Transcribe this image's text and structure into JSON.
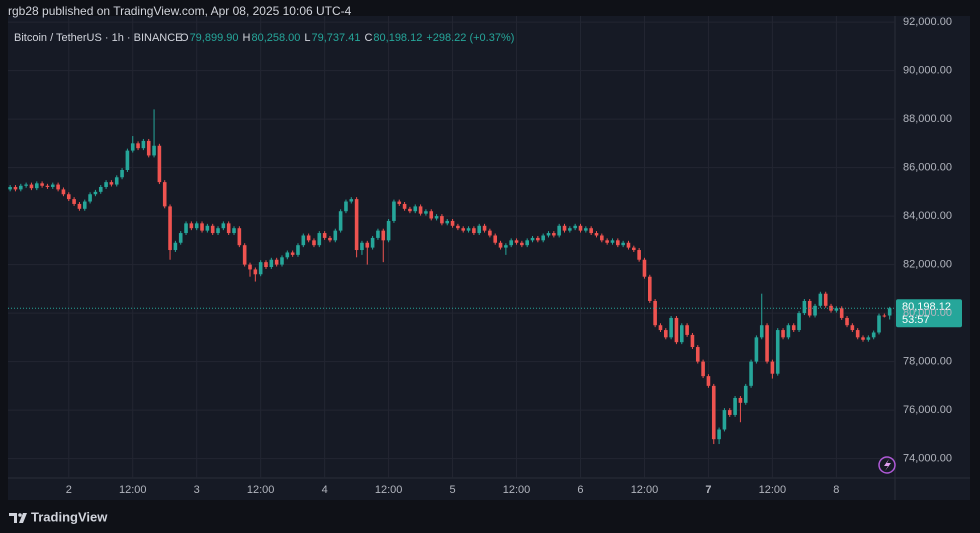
{
  "header": {
    "text": "rgb28 published on TradingView.com, Apr 08, 2025 10:06 UTC-4"
  },
  "footer": {
    "brand": "TradingView"
  },
  "chart_data": {
    "type": "candlestick",
    "symbol": "Bitcoin / TetherUS · 1h · BINANCE",
    "legend": [
      {
        "key": "O",
        "value": "79,899.90"
      },
      {
        "key": "H",
        "value": "80,258.00"
      },
      {
        "key": "L",
        "value": "79,737.41"
      },
      {
        "key": "C",
        "value": "80,198.12"
      }
    ],
    "change": "+298.22 (+0.37%)",
    "last_price_label": "80,198.12",
    "countdown": "53:57",
    "up_color": "#26a69a",
    "down_color": "#ef5350",
    "grid": true,
    "xlim": [
      -0.4,
      166
    ],
    "ylim": [
      73200,
      92250
    ],
    "yticks": [
      {
        "value": 74000,
        "label": "74,000.00"
      },
      {
        "value": 76000,
        "label": "76,000.00"
      },
      {
        "value": 78000,
        "label": "78,000.00"
      },
      {
        "value": 80000,
        "label": "80,000.00"
      },
      {
        "value": 82000,
        "label": "82,000.00"
      },
      {
        "value": 84000,
        "label": "84,000.00"
      },
      {
        "value": 86000,
        "label": "86,000.00"
      },
      {
        "value": 88000,
        "label": "88,000.00"
      },
      {
        "value": 90000,
        "label": "90,000.00"
      },
      {
        "value": 92000,
        "label": "92,000.00"
      }
    ],
    "xticks": [
      {
        "value": 11,
        "label": "2"
      },
      {
        "value": 23,
        "label": "12:00"
      },
      {
        "value": 35,
        "label": "3"
      },
      {
        "value": 47,
        "label": "12:00"
      },
      {
        "value": 59,
        "label": "4"
      },
      {
        "value": 71,
        "label": "12:00"
      },
      {
        "value": 83,
        "label": "5"
      },
      {
        "value": 95,
        "label": "12:00"
      },
      {
        "value": 107,
        "label": "6"
      },
      {
        "value": 119,
        "label": "12:00"
      },
      {
        "value": 131,
        "label": "7"
      },
      {
        "value": 143,
        "label": "12:00"
      },
      {
        "value": 155,
        "label": "8"
      }
    ],
    "ohlc": [
      [
        85100,
        85280,
        85020,
        85200
      ],
      [
        85200,
        85280,
        85020,
        85100
      ],
      [
        85100,
        85330,
        85020,
        85250
      ],
      [
        85250,
        85380,
        85170,
        85300
      ],
      [
        85300,
        85380,
        85070,
        85150
      ],
      [
        85150,
        85430,
        85070,
        85350
      ],
      [
        85350,
        85430,
        85170,
        85250
      ],
      [
        85250,
        85330,
        85120,
        85200
      ],
      [
        85200,
        85380,
        85120,
        85300
      ],
      [
        85300,
        85380,
        85020,
        85100
      ],
      [
        85100,
        85180,
        84820,
        84900
      ],
      [
        84900,
        84980,
        84620,
        84700
      ],
      [
        84700,
        84780,
        84420,
        84500
      ],
      [
        84500,
        84580,
        84220,
        84300
      ],
      [
        84300,
        84680,
        84220,
        84600
      ],
      [
        84600,
        84980,
        84520,
        84900
      ],
      [
        84900,
        85080,
        84820,
        85000
      ],
      [
        85000,
        85280,
        84920,
        85200
      ],
      [
        85200,
        85480,
        85120,
        85400
      ],
      [
        85400,
        85480,
        85220,
        85300
      ],
      [
        85300,
        85680,
        85220,
        85600
      ],
      [
        85600,
        85980,
        85520,
        85900
      ],
      [
        85900,
        86780,
        85820,
        86700
      ],
      [
        86700,
        87300,
        86620,
        87000
      ],
      [
        87000,
        87080,
        86720,
        86800
      ],
      [
        86800,
        87180,
        86720,
        87100
      ],
      [
        87100,
        87180,
        86420,
        86500
      ],
      [
        86500,
        88400,
        86420,
        86900
      ],
      [
        86900,
        86980,
        85320,
        85400
      ],
      [
        85400,
        85480,
        84320,
        84400
      ],
      [
        84400,
        84480,
        82200,
        82600
      ],
      [
        82600,
        82980,
        82520,
        82900
      ],
      [
        82900,
        83380,
        82820,
        83300
      ],
      [
        83300,
        83780,
        83220,
        83700
      ],
      [
        83700,
        83780,
        83420,
        83500
      ],
      [
        83500,
        83780,
        83420,
        83700
      ],
      [
        83700,
        83780,
        83320,
        83400
      ],
      [
        83400,
        83680,
        83320,
        83600
      ],
      [
        83600,
        83680,
        83220,
        83300
      ],
      [
        83300,
        83580,
        83220,
        83500
      ],
      [
        83500,
        83780,
        83420,
        83700
      ],
      [
        83700,
        83780,
        83220,
        83300
      ],
      [
        83300,
        83580,
        83220,
        83500
      ],
      [
        83500,
        83580,
        82720,
        82800
      ],
      [
        82800,
        82880,
        81920,
        82000
      ],
      [
        82000,
        82080,
        81500,
        81800
      ],
      [
        81800,
        81880,
        81300,
        81600
      ],
      [
        81600,
        82180,
        81520,
        82100
      ],
      [
        82100,
        82180,
        81820,
        81900
      ],
      [
        81900,
        82280,
        81820,
        82200
      ],
      [
        82200,
        82280,
        81920,
        82000
      ],
      [
        82000,
        82380,
        81920,
        82300
      ],
      [
        82300,
        82580,
        82220,
        82500
      ],
      [
        82500,
        82580,
        82320,
        82400
      ],
      [
        82400,
        82880,
        82320,
        82800
      ],
      [
        82800,
        83280,
        82720,
        83200
      ],
      [
        83200,
        83280,
        82920,
        83000
      ],
      [
        83000,
        83080,
        82720,
        82800
      ],
      [
        82800,
        83380,
        82720,
        83300
      ],
      [
        83300,
        83380,
        83020,
        83100
      ],
      [
        83100,
        83180,
        82920,
        83000
      ],
      [
        83000,
        83480,
        82920,
        83400
      ],
      [
        83400,
        84280,
        83320,
        84200
      ],
      [
        84200,
        84680,
        84120,
        84600
      ],
      [
        84600,
        84780,
        84520,
        84700
      ],
      [
        84700,
        84780,
        82300,
        82600
      ],
      [
        82600,
        82980,
        82400,
        82900
      ],
      [
        82900,
        82980,
        82000,
        82700
      ],
      [
        82700,
        83180,
        82620,
        83100
      ],
      [
        83100,
        83480,
        83020,
        83400
      ],
      [
        83400,
        83480,
        82100,
        83000
      ],
      [
        83000,
        83880,
        82920,
        83800
      ],
      [
        83800,
        84680,
        83720,
        84600
      ],
      [
        84600,
        84680,
        84420,
        84500
      ],
      [
        84500,
        84580,
        84220,
        84300
      ],
      [
        84300,
        84380,
        84120,
        84200
      ],
      [
        84200,
        84480,
        84120,
        84400
      ],
      [
        84400,
        84480,
        84020,
        84100
      ],
      [
        84100,
        84280,
        84020,
        84200
      ],
      [
        84200,
        84280,
        83820,
        83900
      ],
      [
        83900,
        84080,
        83820,
        84000
      ],
      [
        84000,
        84080,
        83620,
        83700
      ],
      [
        83700,
        83880,
        83620,
        83800
      ],
      [
        83800,
        83880,
        83520,
        83600
      ],
      [
        83600,
        83680,
        83420,
        83500
      ],
      [
        83500,
        83580,
        83320,
        83400
      ],
      [
        83400,
        83580,
        83320,
        83500
      ],
      [
        83500,
        83580,
        83220,
        83300
      ],
      [
        83300,
        83680,
        83220,
        83600
      ],
      [
        83600,
        83680,
        83320,
        83400
      ],
      [
        83400,
        83480,
        83120,
        83200
      ],
      [
        83200,
        83280,
        82820,
        82900
      ],
      [
        82900,
        82980,
        82620,
        82700
      ],
      [
        82700,
        82880,
        82400,
        82800
      ],
      [
        82800,
        83080,
        82720,
        83000
      ],
      [
        83000,
        83080,
        82820,
        82900
      ],
      [
        82900,
        82980,
        82720,
        82800
      ],
      [
        82800,
        83080,
        82720,
        83000
      ],
      [
        83000,
        83180,
        82920,
        83100
      ],
      [
        83100,
        83180,
        82920,
        83000
      ],
      [
        83000,
        83280,
        82920,
        83200
      ],
      [
        83200,
        83380,
        83120,
        83300
      ],
      [
        83300,
        83380,
        83120,
        83200
      ],
      [
        83200,
        83680,
        83120,
        83600
      ],
      [
        83600,
        83680,
        83320,
        83400
      ],
      [
        83400,
        83580,
        83320,
        83500
      ],
      [
        83500,
        83680,
        83420,
        83600
      ],
      [
        83600,
        83680,
        83320,
        83400
      ],
      [
        83400,
        83580,
        83320,
        83500
      ],
      [
        83500,
        83580,
        83220,
        83300
      ],
      [
        83300,
        83380,
        83120,
        83200
      ],
      [
        83200,
        83280,
        82920,
        83000
      ],
      [
        83000,
        83080,
        82820,
        82900
      ],
      [
        82900,
        83080,
        82820,
        83000
      ],
      [
        83000,
        83080,
        82720,
        82800
      ],
      [
        82800,
        82980,
        82720,
        82900
      ],
      [
        82900,
        82980,
        82620,
        82700
      ],
      [
        82700,
        82780,
        82520,
        82600
      ],
      [
        82600,
        82680,
        82120,
        82200
      ],
      [
        82200,
        82280,
        81420,
        81500
      ],
      [
        81500,
        81580,
        80420,
        80500
      ],
      [
        80500,
        80580,
        79420,
        79500
      ],
      [
        79500,
        79580,
        79220,
        79300
      ],
      [
        79300,
        79380,
        78920,
        79000
      ],
      [
        79000,
        79880,
        78920,
        79800
      ],
      [
        79800,
        79880,
        78720,
        78800
      ],
      [
        78800,
        79580,
        78720,
        79500
      ],
      [
        79500,
        79580,
        79020,
        79100
      ],
      [
        79100,
        79180,
        78520,
        78600
      ],
      [
        78600,
        78680,
        77920,
        78000
      ],
      [
        78000,
        78080,
        77320,
        77400
      ],
      [
        77400,
        77480,
        76920,
        77000
      ],
      [
        77000,
        77080,
        74600,
        74800
      ],
      [
        74800,
        75280,
        74600,
        75200
      ],
      [
        75200,
        76080,
        75120,
        76000
      ],
      [
        76000,
        76080,
        75720,
        75800
      ],
      [
        75800,
        76580,
        75720,
        76500
      ],
      [
        76500,
        76580,
        75500,
        76300
      ],
      [
        76300,
        77080,
        76220,
        77000
      ],
      [
        77000,
        78080,
        76920,
        78000
      ],
      [
        78000,
        79080,
        77920,
        79000
      ],
      [
        79000,
        80800,
        78920,
        79500
      ],
      [
        79500,
        79580,
        77920,
        78000
      ],
      [
        78000,
        78080,
        77300,
        77500
      ],
      [
        77500,
        79380,
        77420,
        79300
      ],
      [
        79300,
        79380,
        78920,
        79000
      ],
      [
        79000,
        79580,
        78920,
        79500
      ],
      [
        79500,
        79580,
        79220,
        79300
      ],
      [
        79300,
        80080,
        79220,
        80000
      ],
      [
        80000,
        80580,
        79920,
        80500
      ],
      [
        80500,
        80580,
        79820,
        79900
      ],
      [
        79900,
        80380,
        79820,
        80300
      ],
      [
        80300,
        80880,
        80220,
        80800
      ],
      [
        80800,
        80880,
        80220,
        80300
      ],
      [
        80300,
        80380,
        80020,
        80100
      ],
      [
        80100,
        80280,
        80020,
        80200
      ],
      [
        80200,
        80280,
        79720,
        79800
      ],
      [
        79800,
        79880,
        79420,
        79500
      ],
      [
        79500,
        79580,
        79220,
        79300
      ],
      [
        79300,
        79380,
        78920,
        79000
      ],
      [
        79000,
        79080,
        78820,
        78900
      ],
      [
        78900,
        79080,
        78820,
        79000
      ],
      [
        79000,
        79280,
        78920,
        79200
      ],
      [
        79200,
        79980,
        79120,
        79900
      ],
      [
        79900,
        79980,
        79820,
        79899.9
      ],
      [
        79899.9,
        80258,
        79737.41,
        80198.12
      ]
    ]
  }
}
